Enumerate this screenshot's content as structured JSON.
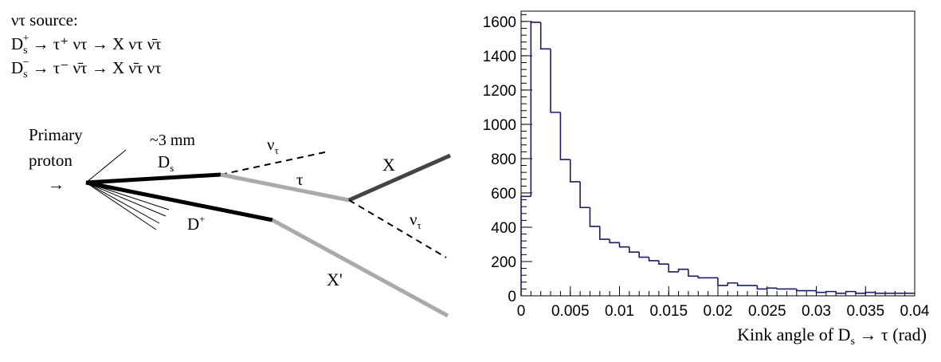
{
  "diagram": {
    "source_title": "ντ source:",
    "eq1": {
      "lhs": "D",
      "lhs_sub": "s",
      "lhs_sup": "+",
      "rest": "→ τ⁺ ντ → X ντ ν̄τ"
    },
    "eq2": {
      "lhs": "D",
      "lhs_sub": "s",
      "lhs_sup": "−",
      "rest": "→ τ⁻ ν̄τ → X ν̄τ ντ"
    },
    "primary_line1": "Primary",
    "primary_line2": "proton",
    "arrow": "→",
    "distance": "~3 mm",
    "ds_main": "D",
    "ds_sub": "s",
    "dplus_main": "D",
    "dplus_sup": "+",
    "nu_main": "ν",
    "nu_sub": "τ",
    "tau": "τ",
    "x": "X",
    "xprime": "X'"
  },
  "chart_data": {
    "type": "histogram",
    "xlabel": "Kink angle of Dₛ → τ (rad)",
    "xlabel_parts": {
      "pre": "Kink angle of D",
      "sub": "s",
      "post": " → τ (rad)"
    },
    "xlim": [
      0,
      0.04
    ],
    "ylim": [
      0,
      1660
    ],
    "xticks": [
      0,
      0.005,
      0.01,
      0.015,
      0.02,
      0.025,
      0.03,
      0.035,
      0.04
    ],
    "xtick_labels": [
      "0",
      "0.005",
      "0.01",
      "0.015",
      "0.02",
      "0.025",
      "0.03",
      "0.035",
      "0.04"
    ],
    "yticks": [
      0,
      200,
      400,
      600,
      800,
      1000,
      1200,
      1400,
      1600
    ],
    "ytick_labels": [
      "0",
      "200",
      "400",
      "600",
      "800",
      "1000",
      "1200",
      "1400",
      "1600"
    ],
    "bin_width": 0.001,
    "bin_start": 0,
    "values": [
      580,
      1595,
      1440,
      1070,
      795,
      665,
      515,
      405,
      330,
      310,
      285,
      255,
      225,
      205,
      185,
      140,
      155,
      115,
      105,
      105,
      60,
      75,
      60,
      60,
      40,
      45,
      40,
      40,
      30,
      30,
      20,
      25,
      15,
      25,
      15,
      20,
      15,
      15,
      15,
      15
    ],
    "grid": false,
    "line_color": "#1a1a6e"
  }
}
